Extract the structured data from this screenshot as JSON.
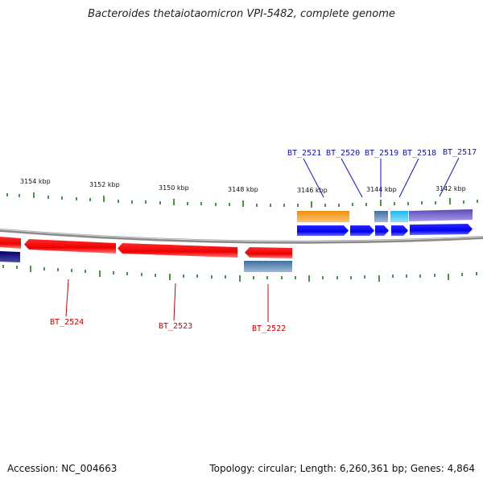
{
  "title": "Bacteroides thetaiotaomicron VPI-5482, complete genome",
  "accession": "Accession: NC_004663",
  "summary": "Topology: circular; Length: 6,260,361 bp; Genes: 4,864",
  "colors": {
    "backbone": "#888888",
    "tick": "#1a7a1a",
    "forward_gene": "#0000ee",
    "reverse_gene": "#ee0000",
    "label_forward": "#1010c8",
    "label_reverse": "#cc0000"
  },
  "ticks": {
    "labels": [
      "3154 kbp",
      "3152 kbp",
      "3150 kbp",
      "3148 kbp",
      "3146 kbp",
      "3144 kbp",
      "3142 kbp"
    ]
  },
  "forward_labels": [
    "BT_2521",
    "BT_2520",
    "BT_2519",
    "BT_2518",
    "BT_2517"
  ],
  "reverse_labels": [
    "BT_2524",
    "BT_2523",
    "BT_2522"
  ]
}
